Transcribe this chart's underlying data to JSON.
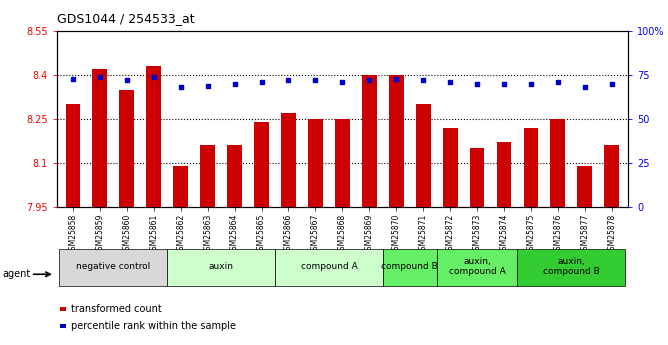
{
  "title": "GDS1044 / 254533_at",
  "samples": [
    "GSM25858",
    "GSM25859",
    "GSM25860",
    "GSM25861",
    "GSM25862",
    "GSM25863",
    "GSM25864",
    "GSM25865",
    "GSM25866",
    "GSM25867",
    "GSM25868",
    "GSM25869",
    "GSM25870",
    "GSM25871",
    "GSM25872",
    "GSM25873",
    "GSM25874",
    "GSM25875",
    "GSM25876",
    "GSM25877",
    "GSM25878"
  ],
  "bar_values": [
    8.3,
    8.42,
    8.35,
    8.43,
    8.09,
    8.16,
    8.16,
    8.24,
    8.27,
    8.25,
    8.25,
    8.4,
    8.4,
    8.3,
    8.22,
    8.15,
    8.17,
    8.22,
    8.25,
    8.09,
    8.16
  ],
  "percentile_values": [
    73,
    74,
    72,
    74,
    68,
    69,
    70,
    71,
    72,
    72,
    71,
    72,
    73,
    72,
    71,
    70,
    70,
    70,
    71,
    68,
    70
  ],
  "bar_color": "#cc0000",
  "percentile_color": "#0000cc",
  "ylim_left": [
    7.95,
    8.55
  ],
  "ylim_right": [
    0,
    100
  ],
  "yticks_left": [
    7.95,
    8.1,
    8.25,
    8.4,
    8.55
  ],
  "ytick_labels_left": [
    "7.95",
    "8.1",
    "8.25",
    "8.4",
    "8.55"
  ],
  "ytick_labels_right": [
    "0",
    "25",
    "50",
    "75",
    "100%"
  ],
  "groups": [
    {
      "label": "negative control",
      "start": 0,
      "end": 3,
      "color": "#d8d8d8"
    },
    {
      "label": "auxin",
      "start": 4,
      "end": 7,
      "color": "#ccffcc"
    },
    {
      "label": "compound A",
      "start": 8,
      "end": 11,
      "color": "#ccffcc"
    },
    {
      "label": "compound B",
      "start": 12,
      "end": 13,
      "color": "#66ee66"
    },
    {
      "label": "auxin,\ncompound A",
      "start": 14,
      "end": 16,
      "color": "#66ee66"
    },
    {
      "label": "auxin,\ncompound B",
      "start": 17,
      "end": 20,
      "color": "#33cc33"
    }
  ],
  "agent_label": "agent",
  "legend_bar_label": "transformed count",
  "legend_pct_label": "percentile rank within the sample",
  "hgrid_values": [
    8.1,
    8.25,
    8.4
  ],
  "plot_bg": "#ffffff",
  "xtick_bg": "#e8e8e8"
}
